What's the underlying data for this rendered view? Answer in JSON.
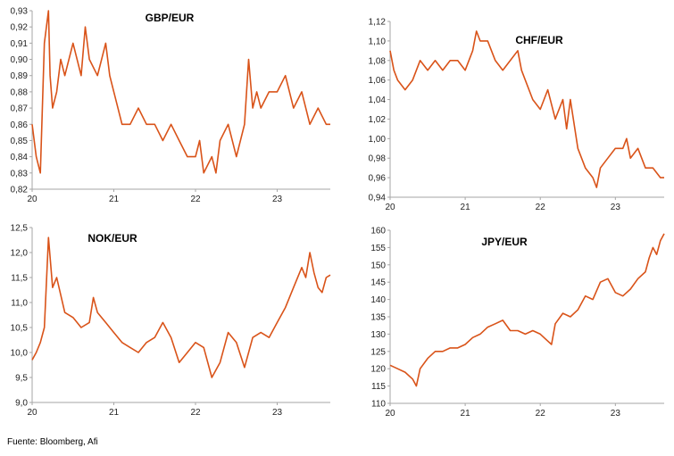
{
  "source": "Fuente: Bloomberg, Afi",
  "series_color": "#d95319",
  "chart_data": [
    {
      "type": "line",
      "title": "GBP/EUR",
      "xlabel": "",
      "ylabel": "",
      "xticks": [
        {
          "label": "20",
          "x": 2020
        },
        {
          "label": "21",
          "x": 2021
        },
        {
          "label": "22",
          "x": 2022
        },
        {
          "label": "23",
          "x": 2023
        }
      ],
      "xlim": [
        2020,
        2023.65
      ],
      "ylim": [
        0.82,
        0.93
      ],
      "yticks": [
        "0,82",
        "0,83",
        "0,84",
        "0,85",
        "0,86",
        "0,87",
        "0,88",
        "0,89",
        "0,90",
        "0,91",
        "0,92",
        "0,93"
      ],
      "ytick_values": [
        0.82,
        0.83,
        0.84,
        0.85,
        0.86,
        0.87,
        0.88,
        0.89,
        0.9,
        0.91,
        0.92,
        0.93
      ],
      "series": [
        {
          "x": [
            2020.0,
            2020.05,
            2020.1,
            2020.15,
            2020.2,
            2020.22,
            2020.25,
            2020.3,
            2020.35,
            2020.4,
            2020.5,
            2020.6,
            2020.65,
            2020.7,
            2020.8,
            2020.9,
            2020.95,
            2021.0,
            2021.05,
            2021.1,
            2021.2,
            2021.3,
            2021.4,
            2021.5,
            2021.6,
            2021.7,
            2021.8,
            2021.9,
            2022.0,
            2022.05,
            2022.1,
            2022.2,
            2022.25,
            2022.3,
            2022.4,
            2022.5,
            2022.6,
            2022.65,
            2022.7,
            2022.75,
            2022.8,
            2022.9,
            2023.0,
            2023.1,
            2023.2,
            2023.3,
            2023.4,
            2023.5,
            2023.6,
            2023.65
          ],
          "y": [
            0.86,
            0.84,
            0.83,
            0.91,
            0.93,
            0.89,
            0.87,
            0.88,
            0.9,
            0.89,
            0.91,
            0.89,
            0.92,
            0.9,
            0.89,
            0.91,
            0.89,
            0.88,
            0.87,
            0.86,
            0.86,
            0.87,
            0.86,
            0.86,
            0.85,
            0.86,
            0.85,
            0.84,
            0.84,
            0.85,
            0.83,
            0.84,
            0.83,
            0.85,
            0.86,
            0.84,
            0.86,
            0.9,
            0.87,
            0.88,
            0.87,
            0.88,
            0.88,
            0.89,
            0.87,
            0.88,
            0.86,
            0.87,
            0.86,
            0.86
          ]
        }
      ]
    },
    {
      "type": "line",
      "title": "CHF/EUR",
      "xlabel": "",
      "ylabel": "",
      "xticks": [
        {
          "label": "20",
          "x": 2020
        },
        {
          "label": "21",
          "x": 2021
        },
        {
          "label": "22",
          "x": 2022
        },
        {
          "label": "23",
          "x": 2023
        }
      ],
      "xlim": [
        2020,
        2023.65
      ],
      "ylim": [
        0.94,
        1.12
      ],
      "yticks": [
        "0,94",
        "0,96",
        "0,98",
        "1,00",
        "1,02",
        "1,04",
        "1,06",
        "1,08",
        "1,10",
        "1,12"
      ],
      "ytick_values": [
        0.94,
        0.96,
        0.98,
        1.0,
        1.02,
        1.04,
        1.06,
        1.08,
        1.1,
        1.12
      ],
      "series": [
        {
          "x": [
            2020.0,
            2020.05,
            2020.1,
            2020.2,
            2020.3,
            2020.4,
            2020.5,
            2020.6,
            2020.7,
            2020.8,
            2020.9,
            2021.0,
            2021.1,
            2021.15,
            2021.2,
            2021.3,
            2021.4,
            2021.5,
            2021.6,
            2021.7,
            2021.75,
            2021.8,
            2021.9,
            2022.0,
            2022.1,
            2022.2,
            2022.3,
            2022.35,
            2022.4,
            2022.5,
            2022.6,
            2022.7,
            2022.75,
            2022.8,
            2022.9,
            2023.0,
            2023.1,
            2023.15,
            2023.2,
            2023.3,
            2023.4,
            2023.5,
            2023.6,
            2023.65
          ],
          "y": [
            1.09,
            1.07,
            1.06,
            1.05,
            1.06,
            1.08,
            1.07,
            1.08,
            1.07,
            1.08,
            1.08,
            1.07,
            1.09,
            1.11,
            1.1,
            1.1,
            1.08,
            1.07,
            1.08,
            1.09,
            1.07,
            1.06,
            1.04,
            1.03,
            1.05,
            1.02,
            1.04,
            1.01,
            1.04,
            0.99,
            0.97,
            0.96,
            0.95,
            0.97,
            0.98,
            0.99,
            0.99,
            1.0,
            0.98,
            0.99,
            0.97,
            0.97,
            0.96,
            0.96
          ]
        }
      ]
    },
    {
      "type": "line",
      "title": "NOK/EUR",
      "xlabel": "",
      "ylabel": "",
      "xticks": [
        {
          "label": "20",
          "x": 2020
        },
        {
          "label": "21",
          "x": 2021
        },
        {
          "label": "22",
          "x": 2022
        },
        {
          "label": "23",
          "x": 2023
        }
      ],
      "xlim": [
        2020,
        2023.65
      ],
      "ylim": [
        9.0,
        12.5
      ],
      "yticks": [
        "9,0",
        "9,5",
        "10,0",
        "10,5",
        "11,0",
        "11,5",
        "12,0",
        "12,5"
      ],
      "ytick_values": [
        9.0,
        9.5,
        10.0,
        10.5,
        11.0,
        11.5,
        12.0,
        12.5
      ],
      "series": [
        {
          "x": [
            2020.0,
            2020.05,
            2020.1,
            2020.15,
            2020.2,
            2020.25,
            2020.3,
            2020.4,
            2020.5,
            2020.6,
            2020.7,
            2020.75,
            2020.8,
            2020.9,
            2021.0,
            2021.1,
            2021.2,
            2021.3,
            2021.4,
            2021.5,
            2021.6,
            2021.7,
            2021.8,
            2021.9,
            2022.0,
            2022.1,
            2022.2,
            2022.3,
            2022.4,
            2022.5,
            2022.6,
            2022.7,
            2022.8,
            2022.9,
            2023.0,
            2023.1,
            2023.2,
            2023.3,
            2023.35,
            2023.4,
            2023.45,
            2023.5,
            2023.55,
            2023.6,
            2023.65
          ],
          "y": [
            9.85,
            10.0,
            10.2,
            10.5,
            12.3,
            11.3,
            11.5,
            10.8,
            10.7,
            10.5,
            10.6,
            11.1,
            10.8,
            10.6,
            10.4,
            10.2,
            10.1,
            10.0,
            10.2,
            10.3,
            10.6,
            10.3,
            9.8,
            10.0,
            10.2,
            10.1,
            9.5,
            9.8,
            10.4,
            10.2,
            9.7,
            10.3,
            10.4,
            10.3,
            10.6,
            10.9,
            11.3,
            11.7,
            11.5,
            12.0,
            11.6,
            11.3,
            11.2,
            11.5,
            11.55
          ]
        }
      ]
    },
    {
      "type": "line",
      "title": "JPY/EUR",
      "xlabel": "",
      "ylabel": "",
      "xticks": [
        {
          "label": "20",
          "x": 2020
        },
        {
          "label": "21",
          "x": 2021
        },
        {
          "label": "22",
          "x": 2022
        },
        {
          "label": "23",
          "x": 2023
        }
      ],
      "xlim": [
        2020,
        2023.65
      ],
      "ylim": [
        110,
        160
      ],
      "yticks": [
        "110",
        "115",
        "120",
        "125",
        "130",
        "135",
        "140",
        "145",
        "150",
        "155",
        "160"
      ],
      "ytick_values": [
        110,
        115,
        120,
        125,
        130,
        135,
        140,
        145,
        150,
        155,
        160
      ],
      "series": [
        {
          "x": [
            2020.0,
            2020.1,
            2020.2,
            2020.3,
            2020.35,
            2020.4,
            2020.5,
            2020.6,
            2020.7,
            2020.8,
            2020.9,
            2021.0,
            2021.1,
            2021.2,
            2021.3,
            2021.4,
            2021.5,
            2021.6,
            2021.7,
            2021.8,
            2021.9,
            2022.0,
            2022.1,
            2022.15,
            2022.2,
            2022.3,
            2022.4,
            2022.5,
            2022.6,
            2022.7,
            2022.8,
            2022.9,
            2023.0,
            2023.1,
            2023.2,
            2023.3,
            2023.4,
            2023.45,
            2023.5,
            2023.55,
            2023.6,
            2023.65
          ],
          "y": [
            121,
            120,
            119,
            117,
            115,
            120,
            123,
            125,
            125,
            126,
            126,
            127,
            129,
            130,
            132,
            133,
            134,
            131,
            131,
            130,
            131,
            130,
            128,
            127,
            133,
            136,
            135,
            137,
            141,
            140,
            145,
            146,
            142,
            141,
            143,
            146,
            148,
            152,
            155,
            153,
            157,
            159
          ]
        }
      ]
    }
  ]
}
